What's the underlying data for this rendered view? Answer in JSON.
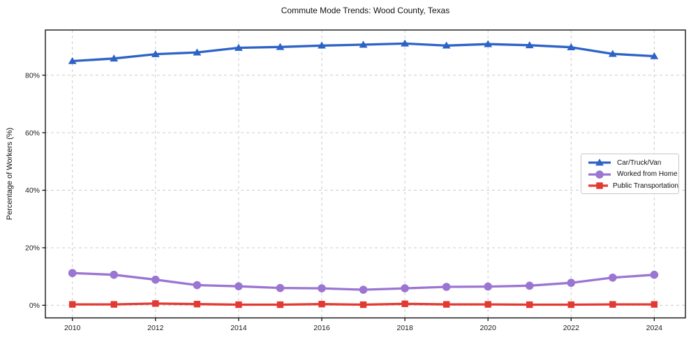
{
  "header": {
    "title": "Commute Mode Trends: Wood County, Texas"
  },
  "chart_data": {
    "type": "line",
    "title": "Commute Mode Trends: Wood County, Texas",
    "xlabel": "",
    "ylabel": "Percentage of Workers (%)",
    "x": [
      2010,
      2011,
      2012,
      2013,
      2014,
      2015,
      2016,
      2017,
      2018,
      2019,
      2020,
      2021,
      2022,
      2023,
      2024
    ],
    "series": [
      {
        "name": "Car/Truck/Van",
        "color": "#2d63c7",
        "marker": "triangle",
        "values": [
          84.9,
          85.8,
          87.3,
          87.9,
          89.5,
          89.8,
          90.3,
          90.6,
          91.0,
          90.3,
          90.8,
          90.4,
          89.7,
          87.4,
          86.6
        ]
      },
      {
        "name": "Worked from Home",
        "color": "#9b75d2",
        "marker": "circle",
        "values": [
          11.2,
          10.6,
          8.9,
          7.0,
          6.6,
          6.0,
          5.9,
          5.4,
          5.9,
          6.4,
          6.5,
          6.8,
          7.8,
          9.6,
          10.6
        ]
      },
      {
        "name": "Public Transportation",
        "color": "#e23a33",
        "marker": "square",
        "values": [
          0.3,
          0.3,
          0.6,
          0.4,
          0.2,
          0.2,
          0.4,
          0.2,
          0.5,
          0.3,
          0.3,
          0.2,
          0.2,
          0.3,
          0.3
        ]
      }
    ],
    "xtick_values": [
      2010,
      2012,
      2014,
      2016,
      2018,
      2020,
      2022,
      2024
    ],
    "xtick_labels": [
      "2010",
      "2012",
      "2014",
      "2016",
      "2018",
      "2020",
      "2022",
      "2024"
    ],
    "ytick_values": [
      0,
      20,
      40,
      60,
      80
    ],
    "ytick_labels": [
      "0%",
      "20%",
      "40%",
      "60%",
      "80%"
    ],
    "xlim": [
      2009.35,
      2024.75
    ],
    "ylim": [
      -4.4,
      95.7
    ],
    "grid": true,
    "legend_position": "right",
    "colors": {
      "grid": "#cccccc",
      "spine": "#000000",
      "text": "#1a1a1a"
    }
  }
}
